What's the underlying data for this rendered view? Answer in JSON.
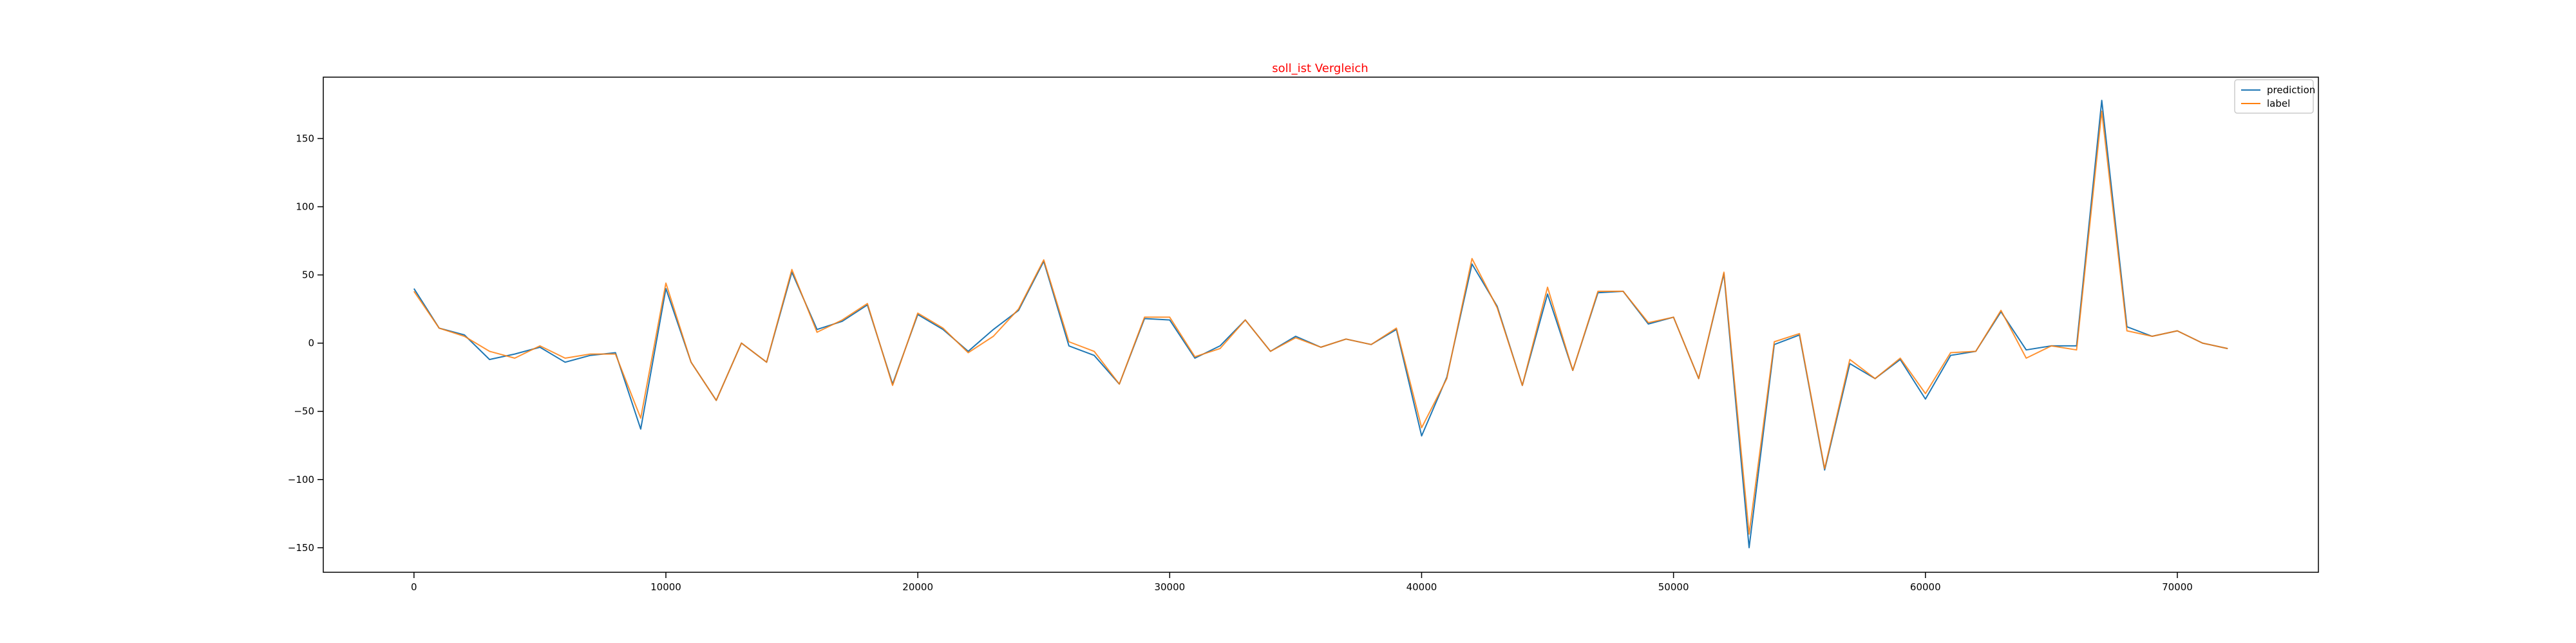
{
  "chart_data": {
    "type": "line",
    "title": "soll_ist Vergleich",
    "xlabel": "",
    "ylabel": "",
    "xlim": [
      -3600,
      75600
    ],
    "ylim": [
      -168,
      195
    ],
    "x_ticks": [
      0,
      10000,
      20000,
      30000,
      40000,
      50000,
      60000,
      70000
    ],
    "y_ticks": [
      -150,
      -100,
      -50,
      0,
      50,
      100,
      150
    ],
    "grid": false,
    "legend_position": "top-right",
    "x": [
      0,
      1000,
      2000,
      3000,
      4000,
      5000,
      6000,
      7000,
      8000,
      9000,
      10000,
      11000,
      12000,
      13000,
      14000,
      15000,
      16000,
      17000,
      18000,
      19000,
      20000,
      21000,
      22000,
      23000,
      24000,
      25000,
      26000,
      27000,
      28000,
      29000,
      30000,
      31000,
      32000,
      33000,
      34000,
      35000,
      36000,
      37000,
      38000,
      39000,
      40000,
      41000,
      42000,
      43000,
      44000,
      45000,
      46000,
      47000,
      48000,
      49000,
      50000,
      51000,
      52000,
      53000,
      54000,
      55000,
      56000,
      57000,
      58000,
      59000,
      60000,
      61000,
      62000,
      63000,
      64000,
      65000,
      66000,
      67000,
      68000,
      69000,
      70000,
      71000,
      72000
    ],
    "series": [
      {
        "name": "prediction",
        "color": "#1f77b4",
        "values": [
          40,
          11,
          6,
          -12,
          -8,
          -3,
          -14,
          -9,
          -7,
          -63,
          40,
          -14,
          -42,
          0,
          -14,
          52,
          10,
          16,
          28,
          -30,
          21,
          10,
          -6,
          10,
          24,
          60,
          -2,
          -9,
          -30,
          18,
          17,
          -11,
          -2,
          17,
          -6,
          5,
          -3,
          3,
          -1,
          10,
          -68,
          -25,
          58,
          27,
          -31,
          36,
          -20,
          37,
          38,
          14,
          19,
          -26,
          51,
          -150,
          -1,
          6,
          -93,
          -15,
          -26,
          -12,
          -41,
          -9,
          -6,
          23,
          -5,
          -2,
          -2,
          178,
          12,
          5,
          9,
          0,
          -4
        ]
      },
      {
        "name": "label",
        "color": "#ff7f0e",
        "values": [
          38,
          11,
          5,
          -6,
          -11,
          -2,
          -11,
          -8,
          -8,
          -55,
          44,
          -14,
          -42,
          0,
          -14,
          54,
          8,
          17,
          29,
          -31,
          22,
          11,
          -7,
          5,
          25,
          61,
          1,
          -6,
          -30,
          19,
          19,
          -10,
          -4,
          17,
          -6,
          4,
          -3,
          3,
          -1,
          11,
          -62,
          -26,
          62,
          26,
          -31,
          41,
          -20,
          38,
          38,
          15,
          19,
          -26,
          52,
          -140,
          1,
          7,
          -92,
          -12,
          -26,
          -11,
          -37,
          -7,
          -6,
          24,
          -11,
          -2,
          -5,
          170,
          9,
          5,
          9,
          0,
          -4
        ]
      }
    ]
  }
}
